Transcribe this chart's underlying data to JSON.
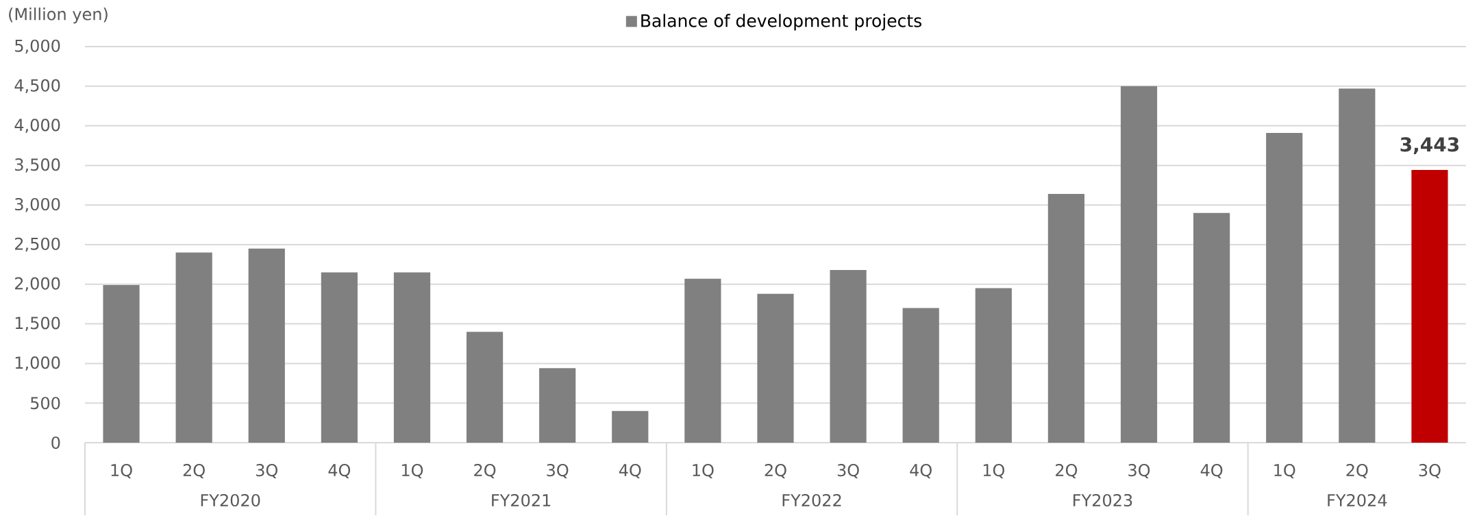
{
  "chart_data": {
    "type": "bar",
    "ylabel": "(Million yen)",
    "categories": [
      "1Q",
      "2Q",
      "3Q",
      "4Q",
      "1Q",
      "2Q",
      "3Q",
      "4Q",
      "1Q",
      "2Q",
      "3Q",
      "4Q",
      "1Q",
      "2Q",
      "3Q",
      "4Q",
      "1Q",
      "2Q",
      "3Q"
    ],
    "series": [
      {
        "name": "Balance of development projects",
        "color": "#808080",
        "colors": [
          "#808080",
          "#808080",
          "#808080",
          "#808080",
          "#808080",
          "#808080",
          "#808080",
          "#808080",
          "#808080",
          "#808080",
          "#808080",
          "#808080",
          "#808080",
          "#808080",
          "#808080",
          "#808080",
          "#808080",
          "#808080",
          "#c00000"
        ],
        "values": [
          1990,
          2400,
          2450,
          2150,
          2150,
          1400,
          940,
          400,
          2070,
          1880,
          2180,
          1700,
          1950,
          3140,
          4500,
          2900,
          3910,
          4470,
          3443
        ],
        "value_labels": [
          null,
          null,
          null,
          null,
          null,
          null,
          null,
          null,
          null,
          null,
          null,
          null,
          null,
          null,
          null,
          null,
          null,
          null,
          "3,443"
        ]
      }
    ],
    "ylim": [
      0,
      5000
    ],
    "yticks": [
      0,
      500,
      {
        "value": 1000,
        "label": "1,000"
      },
      {
        "value": 1500,
        "label": "1,500"
      },
      {
        "value": 2000,
        "label": "2,000"
      },
      {
        "value": 2500,
        "label": "2,500"
      },
      {
        "value": 3000,
        "label": "3,000"
      },
      {
        "value": 3500,
        "label": "3,500"
      },
      {
        "value": 4000,
        "label": "4,000"
      },
      {
        "value": 4500,
        "label": "4,500"
      },
      {
        "value": 5000,
        "label": "5,000"
      }
    ],
    "grid": "y",
    "legend": "top",
    "annotations": [
      "FY2020",
      "FY2021",
      "FY2022",
      "FY2023",
      "FY2024"
    ]
  }
}
